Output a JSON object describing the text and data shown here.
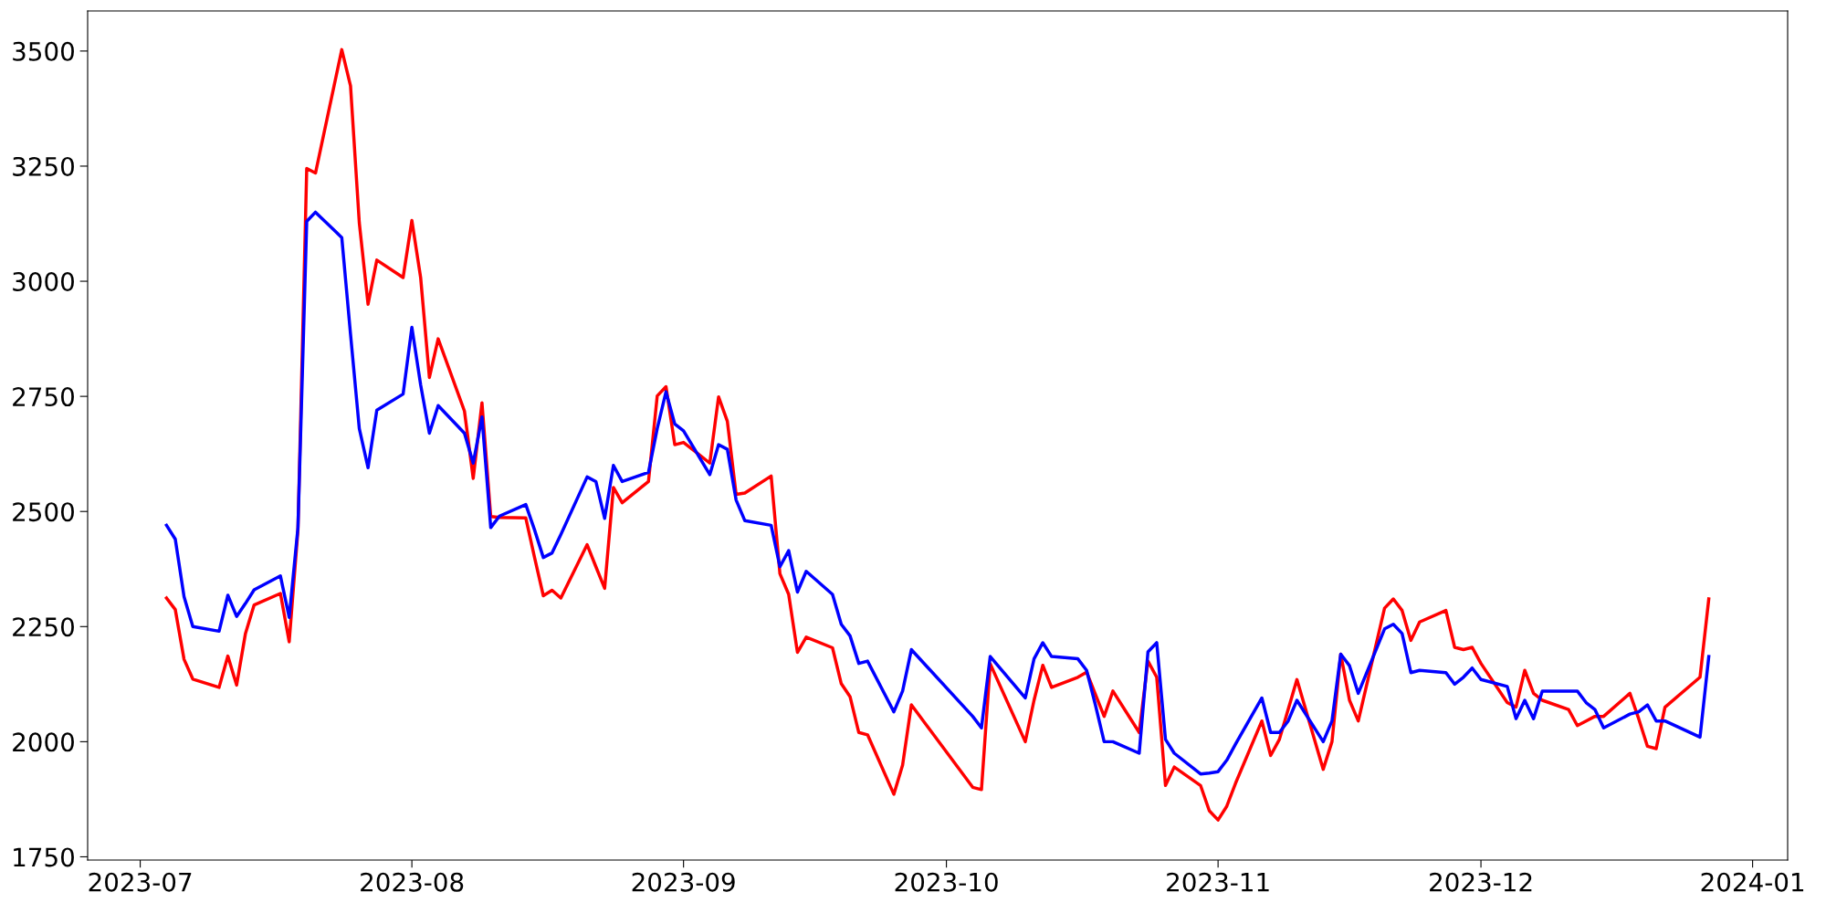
{
  "chart_data": {
    "type": "line",
    "x": [
      "2023-07-04",
      "2023-07-05",
      "2023-07-06",
      "2023-07-07",
      "2023-07-10",
      "2023-07-11",
      "2023-07-12",
      "2023-07-13",
      "2023-07-14",
      "2023-07-17",
      "2023-07-18",
      "2023-07-19",
      "2023-07-20",
      "2023-07-21",
      "2023-07-24",
      "2023-07-25",
      "2023-07-26",
      "2023-07-27",
      "2023-07-28",
      "2023-07-31",
      "2023-08-01",
      "2023-08-02",
      "2023-08-03",
      "2023-08-04",
      "2023-08-07",
      "2023-08-08",
      "2023-08-09",
      "2023-08-10",
      "2023-08-11",
      "2023-08-14",
      "2023-08-15",
      "2023-08-16",
      "2023-08-17",
      "2023-08-18",
      "2023-08-21",
      "2023-08-22",
      "2023-08-23",
      "2023-08-24",
      "2023-08-25",
      "2023-08-28",
      "2023-08-29",
      "2023-08-30",
      "2023-08-31",
      "2023-09-01",
      "2023-09-04",
      "2023-09-05",
      "2023-09-06",
      "2023-09-07",
      "2023-09-08",
      "2023-09-11",
      "2023-09-12",
      "2023-09-13",
      "2023-09-14",
      "2023-09-15",
      "2023-09-18",
      "2023-09-19",
      "2023-09-20",
      "2023-09-21",
      "2023-09-22",
      "2023-09-25",
      "2023-09-26",
      "2023-09-27",
      "2023-10-04",
      "2023-10-05",
      "2023-10-06",
      "2023-10-10",
      "2023-10-11",
      "2023-10-12",
      "2023-10-13",
      "2023-10-16",
      "2023-10-17",
      "2023-10-18",
      "2023-10-19",
      "2023-10-20",
      "2023-10-23",
      "2023-10-24",
      "2023-10-25",
      "2023-10-26",
      "2023-10-27",
      "2023-10-30",
      "2023-10-31",
      "2023-11-01",
      "2023-11-02",
      "2023-11-03",
      "2023-11-06",
      "2023-11-07",
      "2023-11-08",
      "2023-11-09",
      "2023-11-10",
      "2023-11-13",
      "2023-11-14",
      "2023-11-15",
      "2023-11-16",
      "2023-11-17",
      "2023-11-20",
      "2023-11-21",
      "2023-11-22",
      "2023-11-23",
      "2023-11-24",
      "2023-11-27",
      "2023-11-28",
      "2023-11-29",
      "2023-11-30",
      "2023-12-01",
      "2023-12-04",
      "2023-12-05",
      "2023-12-06",
      "2023-12-07",
      "2023-12-08",
      "2023-12-11",
      "2023-12-12",
      "2023-12-13",
      "2023-12-14",
      "2023-12-15",
      "2023-12-18",
      "2023-12-19",
      "2023-12-20",
      "2023-12-21",
      "2023-12-22",
      "2023-12-26",
      "2023-12-27"
    ],
    "series": [
      {
        "color": "#ff0000",
        "values": [
          2312,
          2287,
          2179,
          2136,
          2118,
          2186,
          2123,
          2234,
          2297,
          2322,
          2217,
          2460,
          3245,
          3235,
          3503,
          3424,
          3127,
          2950,
          3046,
          3008,
          3132,
          3008,
          2791,
          2875,
          2718,
          2572,
          2736,
          2489,
          2487,
          2486,
          2400,
          2317,
          2329,
          2312,
          2428,
          2380,
          2333,
          2552,
          2519,
          2565,
          2751,
          2771,
          2645,
          2650,
          2605,
          2749,
          2696,
          2537,
          2540,
          2577,
          2365,
          2320,
          2194,
          2227,
          2204,
          2126,
          2098,
          2020,
          2015,
          1886,
          1949,
          2080,
          1901,
          1896,
          2169,
          2000,
          2090,
          2166,
          2118,
          2140,
          2151,
          2103,
          2055,
          2110,
          2020,
          2175,
          2140,
          1905,
          1945,
          1905,
          1850,
          1830,
          1860,
          1910,
          2045,
          1970,
          2005,
          2070,
          2135,
          1940,
          2000,
          2190,
          2090,
          2045,
          2290,
          2310,
          2285,
          2220,
          2260,
          2285,
          2205,
          2200,
          2205,
          2170,
          2085,
          2075,
          2155,
          2105,
          2090,
          2070,
          2035,
          2045,
          2055,
          2055,
          2105,
          2050,
          1990,
          1985,
          2075,
          2140,
          2310
        ]
      },
      {
        "color": "#0000ff",
        "values": [
          2470,
          2440,
          2315,
          2250,
          2240,
          2318,
          2272,
          2300,
          2330,
          2360,
          2270,
          2465,
          3130,
          3150,
          3095,
          2885,
          2680,
          2595,
          2720,
          2755,
          2900,
          2775,
          2670,
          2730,
          2670,
          2605,
          2705,
          2465,
          2490,
          2515,
          2460,
          2400,
          2410,
          2450,
          2575,
          2565,
          2485,
          2600,
          2565,
          2585,
          2680,
          2760,
          2690,
          2675,
          2580,
          2645,
          2635,
          2525,
          2480,
          2470,
          2380,
          2415,
          2325,
          2370,
          2320,
          2255,
          2230,
          2170,
          2175,
          2065,
          2110,
          2200,
          2055,
          2030,
          2185,
          2095,
          2180,
          2215,
          2185,
          2180,
          2155,
          2080,
          2000,
          2000,
          1975,
          2195,
          2215,
          2005,
          1975,
          1930,
          1932,
          1935,
          1960,
          1995,
          2095,
          2020,
          2020,
          2045,
          2090,
          2000,
          2045,
          2190,
          2165,
          2105,
          2245,
          2255,
          2235,
          2150,
          2155,
          2150,
          2125,
          2140,
          2160,
          2135,
          2120,
          2050,
          2090,
          2050,
          2110,
          2110,
          2110,
          2085,
          2070,
          2030,
          2060,
          2065,
          2080,
          2045,
          2045,
          2010,
          2185
        ]
      }
    ],
    "xlim": [
      "2023-06-25",
      "2024-01-05"
    ],
    "xticks": [
      {
        "value": "2023-07-01",
        "label": "2023-07"
      },
      {
        "value": "2023-08-01",
        "label": "2023-08"
      },
      {
        "value": "2023-09-01",
        "label": "2023-09"
      },
      {
        "value": "2023-10-01",
        "label": "2023-10"
      },
      {
        "value": "2023-11-01",
        "label": "2023-11"
      },
      {
        "value": "2023-12-01",
        "label": "2023-12"
      },
      {
        "value": "2024-01-01",
        "label": "2024-01"
      }
    ],
    "ylim": [
      1743,
      3587
    ],
    "yticks": [
      1750,
      2000,
      2250,
      2500,
      2750,
      3000,
      3250,
      3500
    ],
    "grid": false,
    "legend": false,
    "marker": "none",
    "line_style": "solid"
  }
}
